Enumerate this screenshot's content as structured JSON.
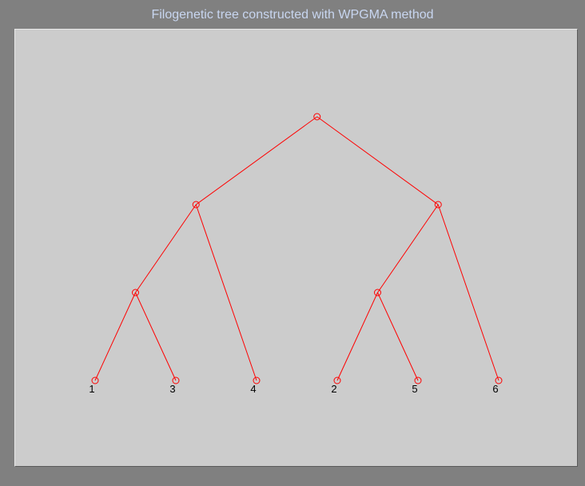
{
  "title": "Filogenetic tree constructed with WPGMA method",
  "colors": {
    "figure_background": "#808080",
    "plot_background": "#cccccc",
    "tree": "#ff0000",
    "title": "#c8d6f0",
    "labels": "#000000"
  },
  "tree": {
    "method": "WPGMA",
    "marker": "circle",
    "leaf_order": [
      "1",
      "3",
      "4",
      "2",
      "5",
      "6"
    ],
    "nodes": [
      {
        "id": "root",
        "level": 3,
        "children": [
          "A",
          "B"
        ]
      },
      {
        "id": "A",
        "level": 2,
        "children": [
          "C",
          "leaf-4"
        ]
      },
      {
        "id": "B",
        "level": 2,
        "children": [
          "D",
          "leaf-6"
        ]
      },
      {
        "id": "C",
        "level": 1,
        "children": [
          "leaf-1",
          "leaf-3"
        ]
      },
      {
        "id": "D",
        "level": 1,
        "children": [
          "leaf-2",
          "leaf-5"
        ]
      },
      {
        "id": "leaf-1",
        "level": 0,
        "label": "1"
      },
      {
        "id": "leaf-3",
        "level": 0,
        "label": "3"
      },
      {
        "id": "leaf-4",
        "level": 0,
        "label": "4"
      },
      {
        "id": "leaf-2",
        "level": 0,
        "label": "2"
      },
      {
        "id": "leaf-5",
        "level": 0,
        "label": "5"
      },
      {
        "id": "leaf-6",
        "level": 0,
        "label": "6"
      }
    ]
  }
}
